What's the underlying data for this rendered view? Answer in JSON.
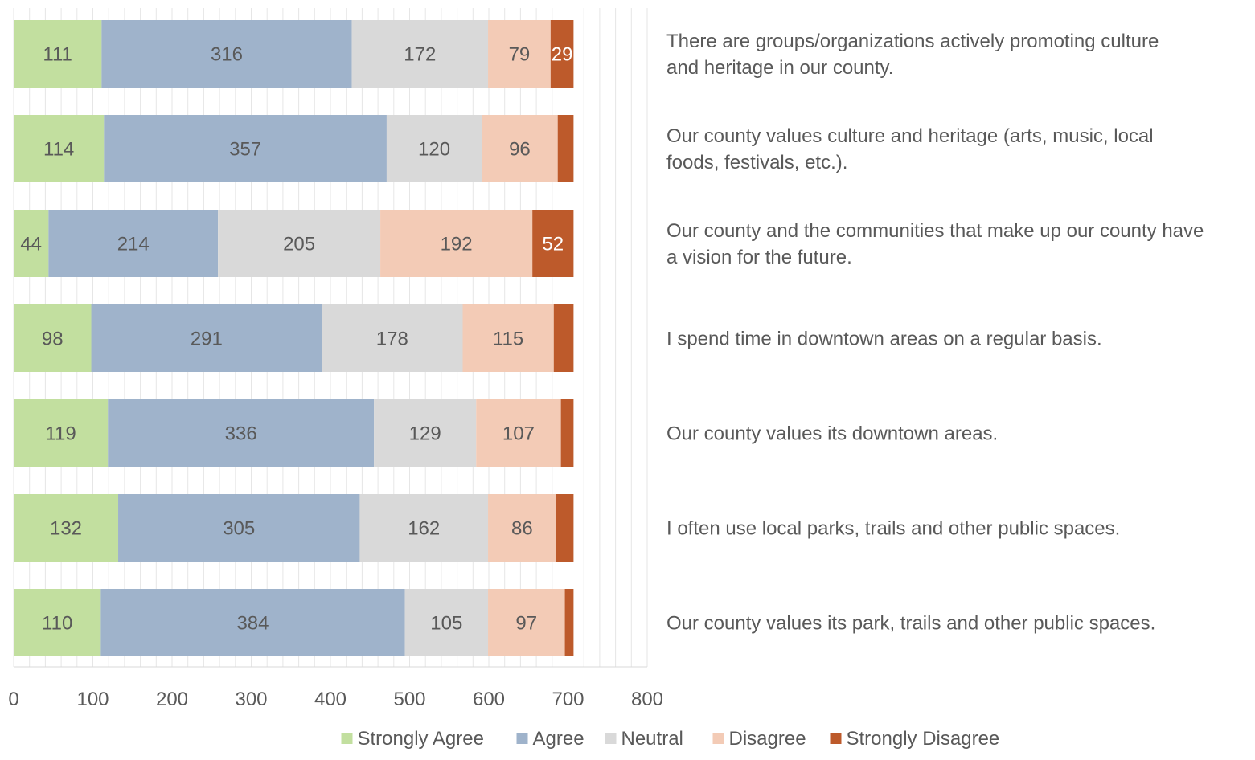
{
  "chart_data": {
    "type": "bar",
    "orientation": "horizontal",
    "stacked": true,
    "categories": [
      "There are groups/organizations actively promoting culture and heritage in our county.",
      "Our county values culture and heritage (arts, music, local foods, festivals, etc.).",
      "Our county and the communities that make up our county have a vision for the future.",
      "I spend time in downtown areas on a regular basis.",
      "Our county values its downtown areas.",
      "I often use local parks, trails and other public spaces.",
      "Our county values its park, trails and other public spaces."
    ],
    "series": [
      {
        "name": "Strongly Agree",
        "color": "#c2df9f",
        "values": [
          111,
          114,
          44,
          98,
          119,
          132,
          110
        ]
      },
      {
        "name": "Agree",
        "color": "#9fb3cb",
        "values": [
          316,
          357,
          214,
          291,
          336,
          305,
          384
        ]
      },
      {
        "name": "Neutral",
        "color": "#d9d9d9",
        "values": [
          172,
          120,
          205,
          178,
          129,
          162,
          105
        ]
      },
      {
        "name": "Disagree",
        "color": "#f3cbb6",
        "values": [
          79,
          96,
          192,
          115,
          107,
          86,
          97
        ]
      },
      {
        "name": "Strongly Disagree",
        "color": "#bd5a2b",
        "values": [
          29,
          20,
          52,
          25,
          16,
          22,
          11
        ]
      }
    ],
    "data_labels_shown": [
      [
        true,
        true,
        true,
        true,
        true,
        true,
        true
      ],
      [
        true,
        true,
        true,
        true,
        true,
        true,
        true
      ],
      [
        true,
        true,
        true,
        true,
        true,
        true,
        true
      ],
      [
        true,
        true,
        true,
        true,
        true,
        true,
        true
      ],
      [
        true,
        false,
        true,
        false,
        false,
        false,
        false
      ]
    ],
    "xlim": [
      0,
      800
    ],
    "xticks": [
      "0",
      "100",
      "200",
      "300",
      "400",
      "500",
      "600",
      "700",
      "800"
    ],
    "grid": "vertical",
    "legend": "bottom",
    "label_color": "#595959",
    "label_color_dark_bar": "#ffffff",
    "axis_text_color": "#595959",
    "grid_color": "#e6e6e6",
    "axis_line_color": "#d9d9d9"
  }
}
